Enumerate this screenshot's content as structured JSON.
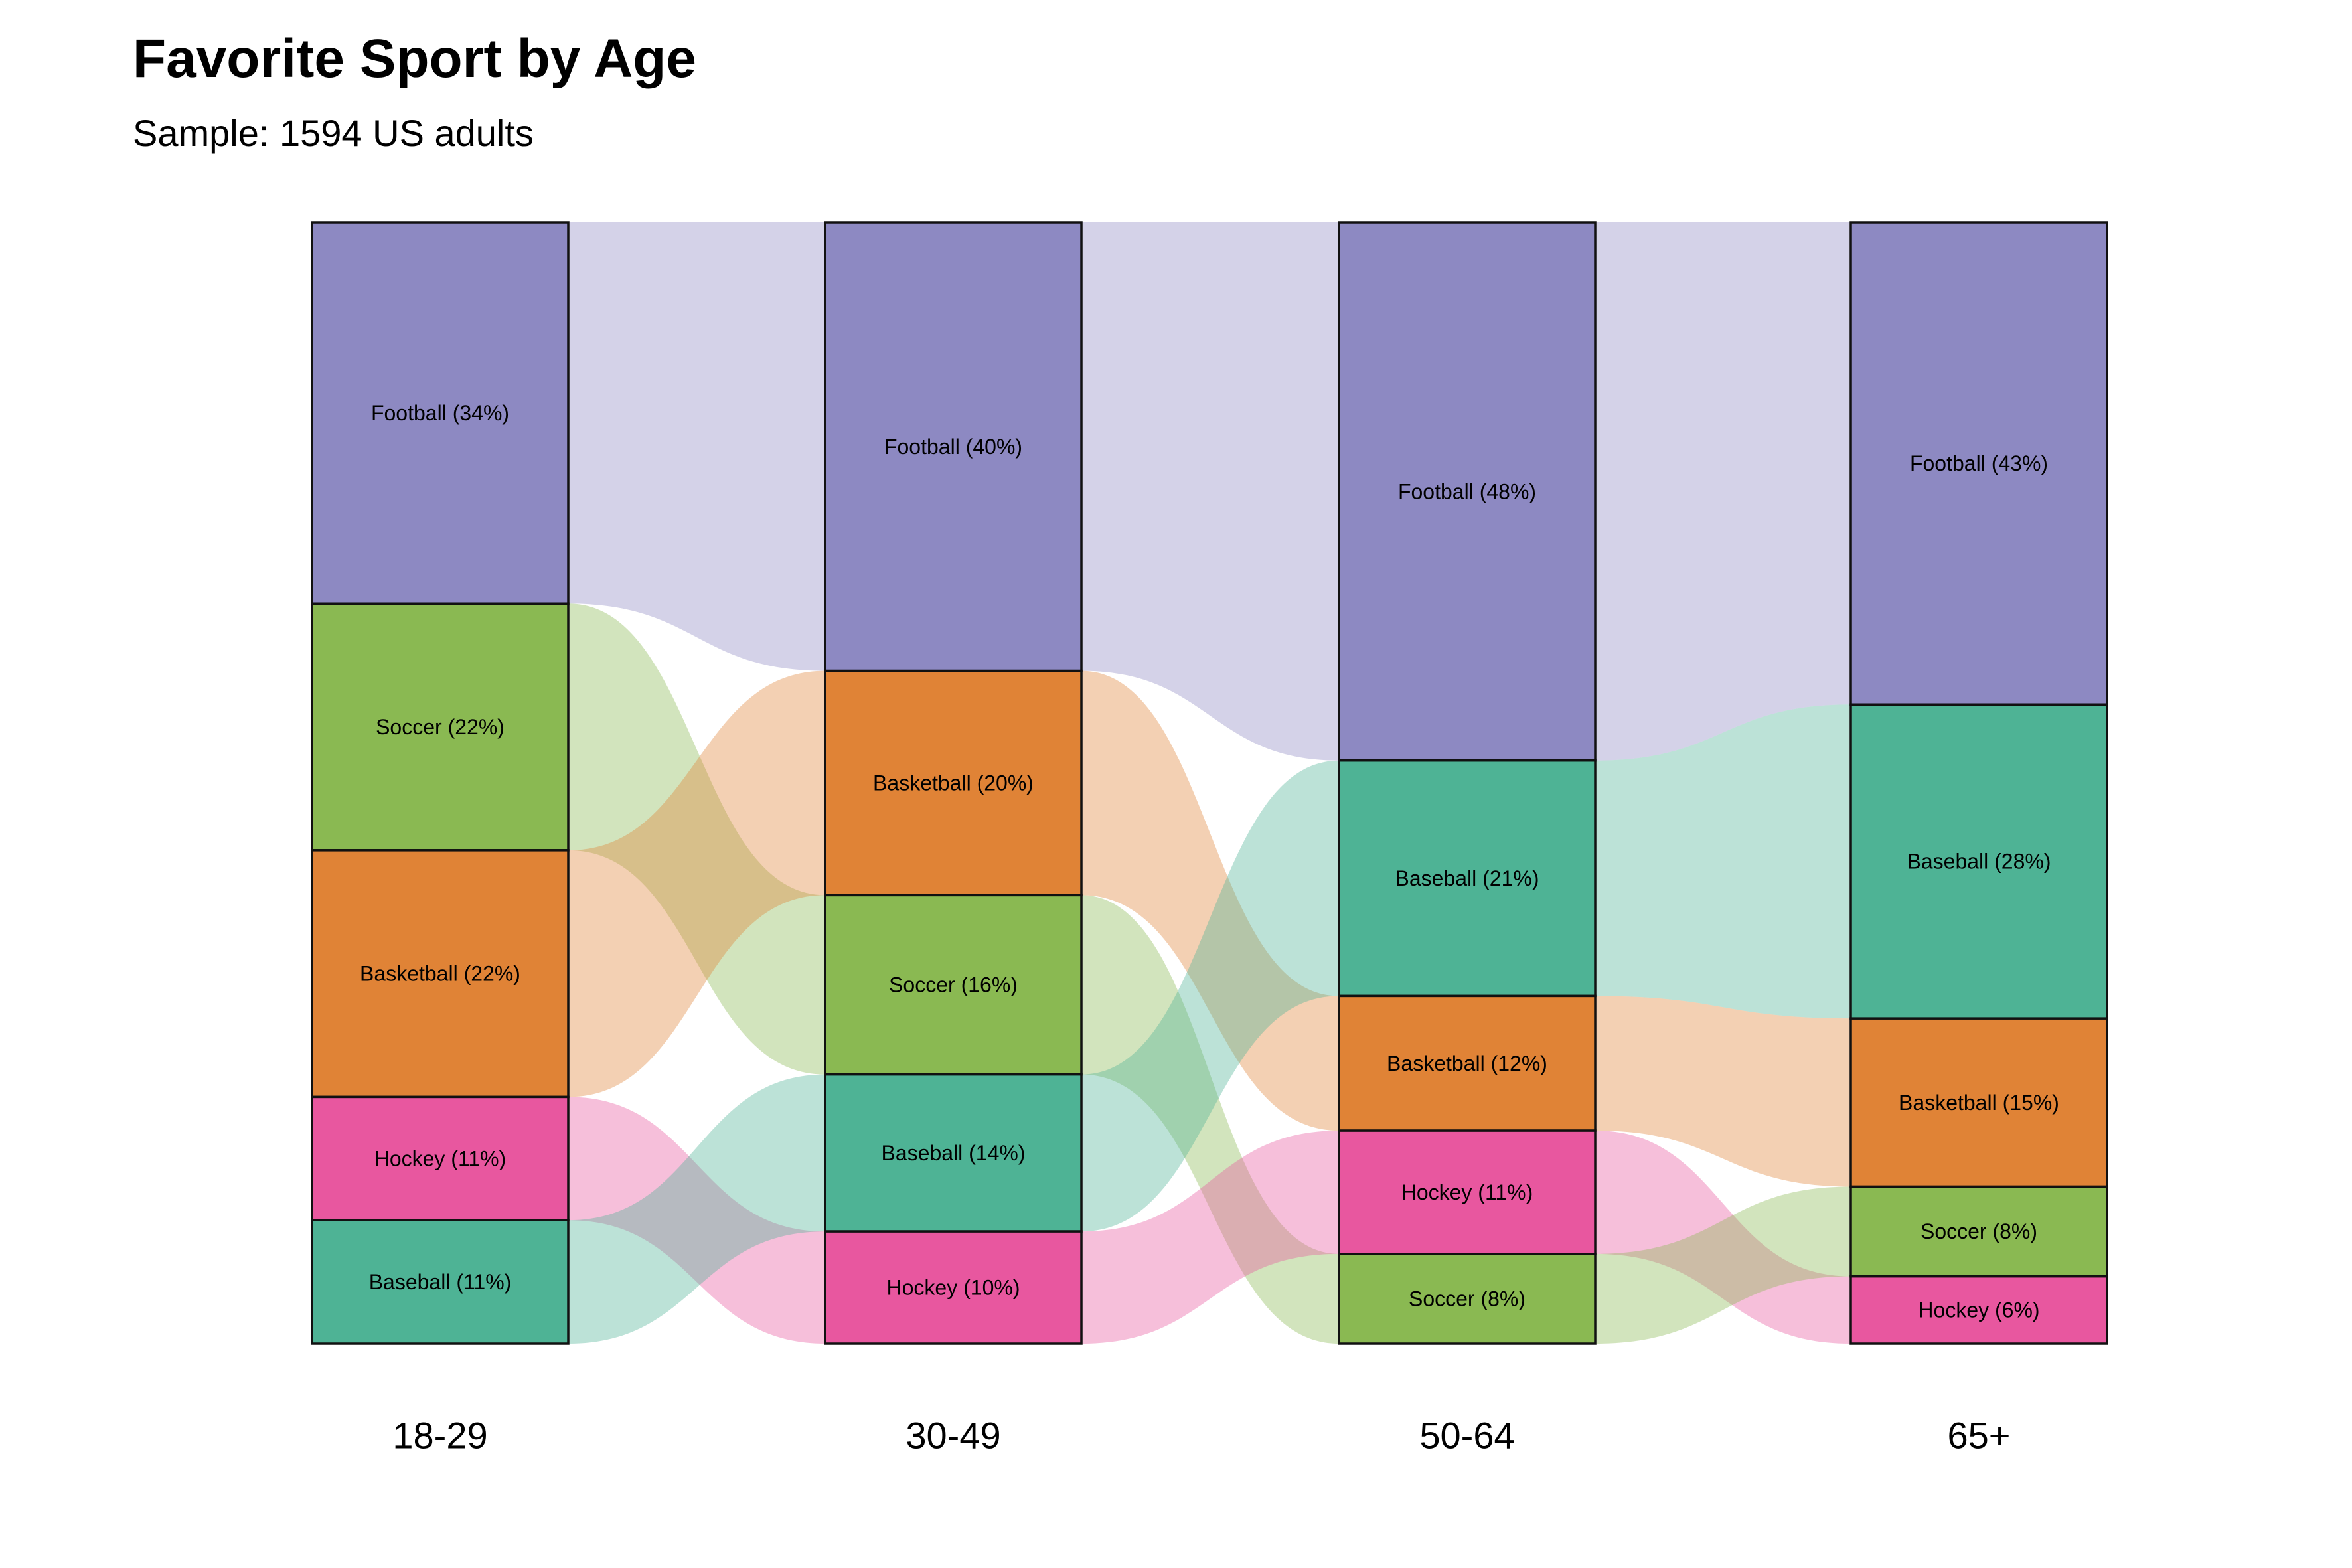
{
  "chart_data": {
    "type": "alluvial",
    "title": "Favorite Sport by Age",
    "subtitle": "Sample: 1594 US adults",
    "colors": {
      "Football": "#8d89c2",
      "Soccer": "#8ab952",
      "Basketball": "#e08336",
      "Hockey": "#e8579f",
      "Baseball": "#4eb395"
    },
    "categories": [
      "18-29",
      "30-49",
      "50-64",
      "65+"
    ],
    "stacks": [
      [
        {
          "sport": "Football",
          "pct": 34,
          "label": "Football (34%)"
        },
        {
          "sport": "Soccer",
          "pct": 22,
          "label": "Soccer (22%)"
        },
        {
          "sport": "Basketball",
          "pct": 22,
          "label": "Basketball (22%)"
        },
        {
          "sport": "Hockey",
          "pct": 11,
          "label": "Hockey (11%)"
        },
        {
          "sport": "Baseball",
          "pct": 11,
          "label": "Baseball (11%)"
        }
      ],
      [
        {
          "sport": "Football",
          "pct": 40,
          "label": "Football (40%)"
        },
        {
          "sport": "Basketball",
          "pct": 20,
          "label": "Basketball (20%)"
        },
        {
          "sport": "Soccer",
          "pct": 16,
          "label": "Soccer (16%)"
        },
        {
          "sport": "Baseball",
          "pct": 14,
          "label": "Baseball (14%)"
        },
        {
          "sport": "Hockey",
          "pct": 10,
          "label": "Hockey (10%)"
        }
      ],
      [
        {
          "sport": "Football",
          "pct": 48,
          "label": "Football (48%)"
        },
        {
          "sport": "Baseball",
          "pct": 21,
          "label": "Baseball (21%)"
        },
        {
          "sport": "Basketball",
          "pct": 12,
          "label": "Basketball (12%)"
        },
        {
          "sport": "Hockey",
          "pct": 11,
          "label": "Hockey (11%)"
        },
        {
          "sport": "Soccer",
          "pct": 8,
          "label": "Soccer (8%)"
        }
      ],
      [
        {
          "sport": "Football",
          "pct": 43,
          "label": "Football (43%)"
        },
        {
          "sport": "Baseball",
          "pct": 28,
          "label": "Baseball (28%)"
        },
        {
          "sport": "Basketball",
          "pct": 15,
          "label": "Basketball (15%)"
        },
        {
          "sport": "Soccer",
          "pct": 8,
          "label": "Soccer (8%)"
        },
        {
          "sport": "Hockey",
          "pct": 6,
          "label": "Hockey (6%)"
        }
      ]
    ]
  }
}
